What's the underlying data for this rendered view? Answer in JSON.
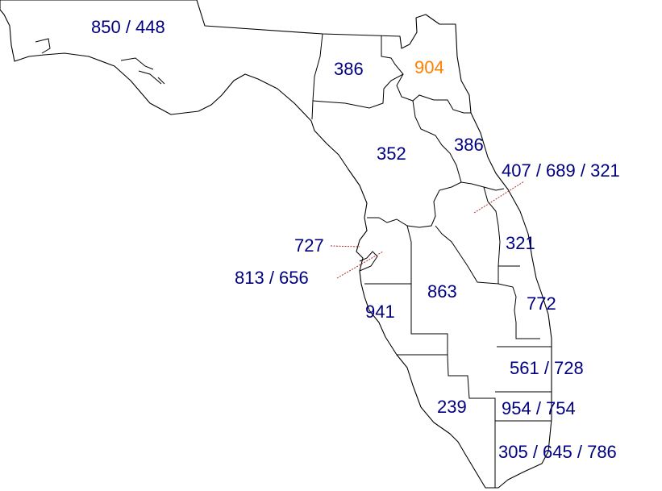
{
  "colors": {
    "label": "#000080",
    "highlight": "#ff7f00",
    "border": "#000000"
  },
  "highlighted_region": "904",
  "regions": [
    {
      "id": "850",
      "label": "850 / 448"
    },
    {
      "id": "386-north",
      "label": "386"
    },
    {
      "id": "904",
      "label": "904"
    },
    {
      "id": "352",
      "label": "352"
    },
    {
      "id": "386-east",
      "label": "386"
    },
    {
      "id": "407",
      "label": "407 / 689 / 321"
    },
    {
      "id": "321",
      "label": "321"
    },
    {
      "id": "727",
      "label": "727"
    },
    {
      "id": "813",
      "label": "813 / 656"
    },
    {
      "id": "863",
      "label": "863"
    },
    {
      "id": "941",
      "label": "941"
    },
    {
      "id": "772",
      "label": "772"
    },
    {
      "id": "561",
      "label": "561 / 728"
    },
    {
      "id": "239",
      "label": "239"
    },
    {
      "id": "954",
      "label": "954 / 754"
    },
    {
      "id": "305",
      "label": "305 / 645 / 786"
    }
  ]
}
